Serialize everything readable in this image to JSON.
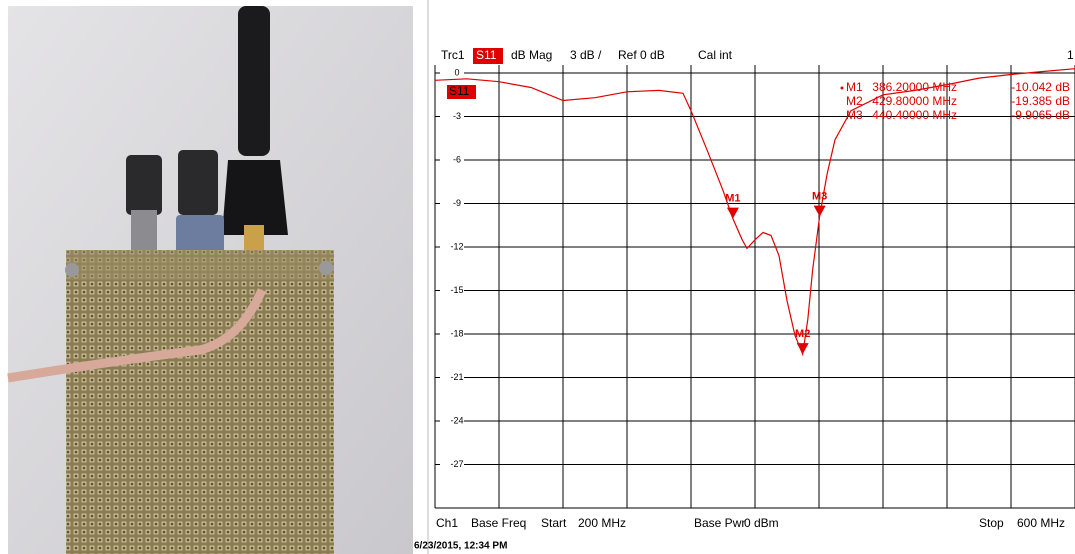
{
  "chart_data": {
    "type": "line",
    "header": [
      "Trc1",
      "dB Mag",
      "3 dB /",
      "Ref 0 dB",
      "Cal int",
      "1"
    ],
    "x": [
      200,
      220,
      240,
      260,
      280,
      300,
      320,
      340,
      355,
      360,
      370,
      380,
      386.2,
      392,
      395,
      400,
      405,
      410,
      415,
      420,
      425,
      429.8,
      433,
      436,
      440.4,
      445,
      450,
      460,
      480,
      500,
      520,
      540,
      560,
      580,
      600
    ],
    "series": [
      {
        "name": "S11",
        "color": "#e00000",
        "values": [
          -0.5,
          -0.4,
          -0.6,
          -1.0,
          -1.9,
          -1.7,
          -1.3,
          -1.2,
          -1.4,
          -2.6,
          -5.3,
          -8.1,
          -10.042,
          -11.5,
          -12.1,
          -11.5,
          -11.0,
          -11.2,
          -12.6,
          -15.7,
          -18.1,
          -19.385,
          -17.0,
          -13.6,
          -9.9065,
          -7.0,
          -4.6,
          -2.6,
          -1.5,
          -1.2,
          -0.8,
          -0.35,
          -0.1,
          0.1,
          0.3
        ]
      }
    ],
    "markers": [
      {
        "name": "M1",
        "x": 386.2,
        "x_label": "386.20000 MHz",
        "y": -10.042,
        "y_label": "-10.042 dB"
      },
      {
        "name": "M2",
        "x": 429.8,
        "x_label": "429.80000 MHz",
        "y": -19.385,
        "y_label": "-19.385 dB"
      },
      {
        "name": "M3",
        "x": 440.4,
        "x_label": "440.40000 MHz",
        "y": -9.9065,
        "y_label": "-9.9065 dB"
      }
    ],
    "xlim": [
      200,
      600
    ],
    "xticks": [
      200,
      240,
      280,
      320,
      360,
      400,
      440,
      480,
      520,
      560,
      600
    ],
    "xtick_labels_shown": false,
    "ylim": [
      -30,
      0
    ],
    "yticks": [
      0,
      -3,
      -6,
      -9,
      -12,
      -15,
      -18,
      -21,
      -24,
      -27
    ],
    "grid": true,
    "footer": [
      "Ch1",
      "Base Freq",
      "Start",
      "200 MHz",
      "Base Pwr",
      "0 dBm",
      "Stop",
      "600 MHz"
    ],
    "timestamp": "6/23/2015, 12:34 PM"
  }
}
